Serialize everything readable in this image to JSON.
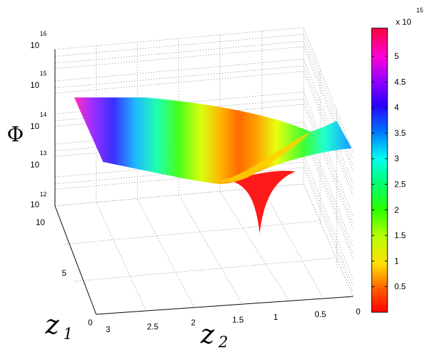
{
  "chart_data": {
    "type": "surface3d",
    "title": "",
    "zlabel": "Φ",
    "xlabel": {
      "base": "z",
      "sub": "2"
    },
    "ylabel": {
      "base": "z",
      "sub": "1"
    },
    "x_ticks": [
      "3",
      "2.5",
      "2",
      "1.5",
      "1",
      "0.5",
      "0"
    ],
    "y_ticks": [
      "0",
      "5",
      "10"
    ],
    "z_ticks": [
      {
        "base": "10",
        "exp": "12"
      },
      {
        "base": "10",
        "exp": "13"
      },
      {
        "base": "10",
        "exp": "14"
      },
      {
        "base": "10",
        "exp": "15"
      },
      {
        "base": "10",
        "exp": "16"
      }
    ],
    "z_scale": "log",
    "zlim": [
      1000000000000.0,
      1e+16
    ],
    "xlim": [
      0,
      3
    ],
    "ylim": [
      0,
      10
    ],
    "grid": true,
    "colormap": "hsv",
    "colorbar": {
      "multiplier": {
        "base": "x 10",
        "exp": "15"
      },
      "ticks": [
        "0.5",
        "1",
        "1.5",
        "2",
        "2.5",
        "3",
        "3.5",
        "4",
        "4.5",
        "5"
      ],
      "tick_values": [
        0.5,
        1,
        1.5,
        2,
        2.5,
        3,
        3.5,
        4,
        4.5,
        5
      ],
      "range": [
        0,
        5.55
      ]
    },
    "surface_features": {
      "min_value_approx": 1000000000000.0,
      "max_value_approx": 5500000000000000.0,
      "cusp_location": {
        "z2": 1.6,
        "z1": 6
      }
    }
  }
}
